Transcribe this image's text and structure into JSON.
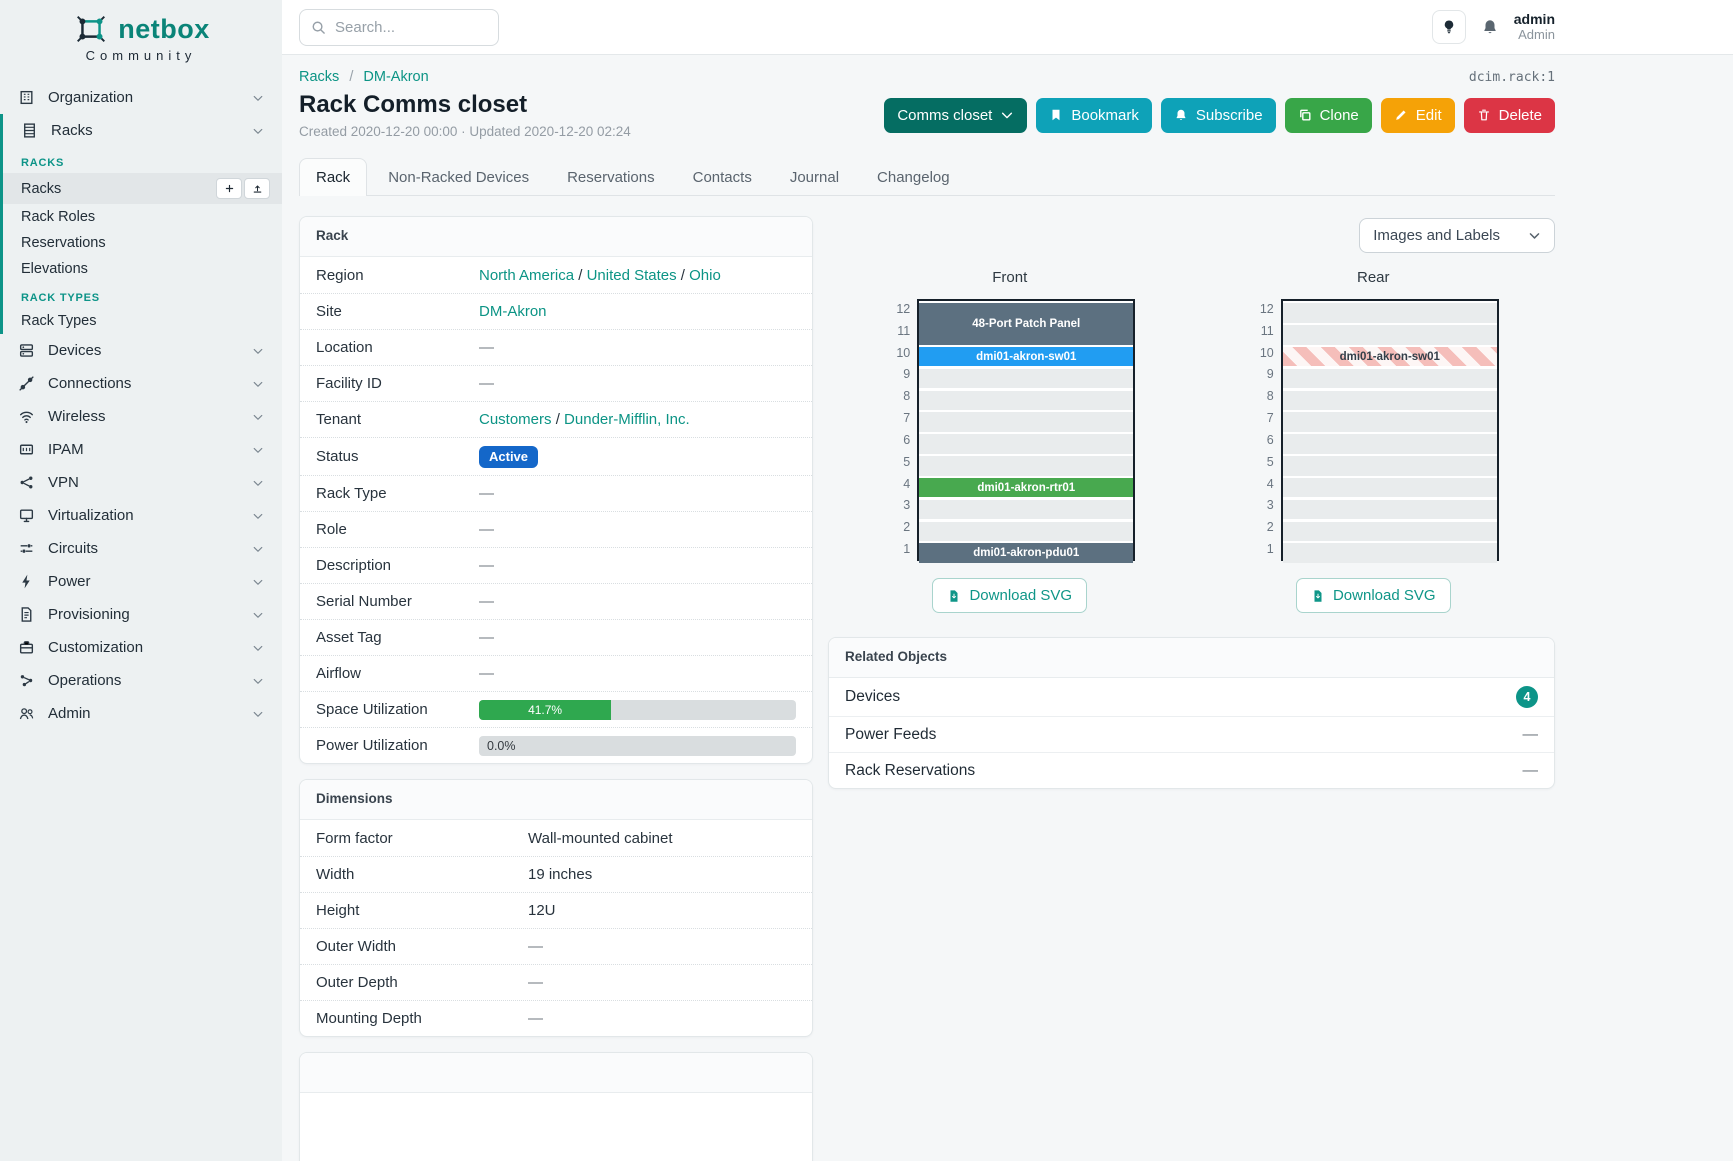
{
  "brand": {
    "name": "netbox",
    "community": "Community"
  },
  "topbar": {
    "search_placeholder": "Search...",
    "username": "admin",
    "role": "Admin"
  },
  "sidebar": {
    "items_before": [
      {
        "label": "Organization",
        "icon": "building"
      }
    ],
    "expanded": {
      "parent": {
        "label": "Racks",
        "icon": "rack"
      },
      "sections": [
        {
          "title": "RACKS",
          "items": [
            {
              "label": "Racks",
              "active": true
            },
            {
              "label": "Rack Roles"
            },
            {
              "label": "Reservations"
            },
            {
              "label": "Elevations"
            }
          ]
        },
        {
          "title": "RACK TYPES",
          "items": [
            {
              "label": "Rack Types"
            }
          ]
        }
      ]
    },
    "items_after": [
      {
        "label": "Devices",
        "icon": "devices"
      },
      {
        "label": "Connections",
        "icon": "connections"
      },
      {
        "label": "Wireless",
        "icon": "wireless"
      },
      {
        "label": "IPAM",
        "icon": "ipam"
      },
      {
        "label": "VPN",
        "icon": "vpn"
      },
      {
        "label": "Virtualization",
        "icon": "virtualization"
      },
      {
        "label": "Circuits",
        "icon": "circuits"
      },
      {
        "label": "Power",
        "icon": "power"
      },
      {
        "label": "Provisioning",
        "icon": "provisioning"
      },
      {
        "label": "Customization",
        "icon": "customization"
      },
      {
        "label": "Operations",
        "icon": "operations"
      },
      {
        "label": "Admin",
        "icon": "admin"
      }
    ]
  },
  "page": {
    "breadcrumb": [
      "Racks",
      "DM-Akron"
    ],
    "object_id": "dcim.rack:1",
    "title": "Rack Comms closet",
    "meta": "Created 2020-12-20 00:00 · Updated 2020-12-20 02:24",
    "tabs": [
      {
        "label": "Rack",
        "active": true
      },
      {
        "label": "Non-Racked Devices"
      },
      {
        "label": "Reservations"
      },
      {
        "label": "Contacts"
      },
      {
        "label": "Journal"
      },
      {
        "label": "Changelog"
      }
    ],
    "actions": [
      {
        "name": "status-dropdown",
        "label": "Comms closet",
        "color": "#056d62",
        "chevron": true
      },
      {
        "name": "bookmark-button",
        "label": "Bookmark",
        "icon": "bookmark",
        "color": "#0ea2b8"
      },
      {
        "name": "subscribe-button",
        "label": "Subscribe",
        "icon": "bell",
        "color": "#0ea2b8"
      },
      {
        "name": "clone-button",
        "label": "Clone",
        "icon": "copy",
        "color": "#38a648"
      },
      {
        "name": "edit-button",
        "label": "Edit",
        "icon": "pencil",
        "color": "#f5a207"
      },
      {
        "name": "delete-button",
        "label": "Delete",
        "icon": "trash",
        "color": "#dc3545"
      }
    ]
  },
  "rack_panel": {
    "title": "Rack",
    "label_width": 163,
    "rows": [
      {
        "label": "Region",
        "type": "links",
        "links": [
          "North America",
          "United States",
          "Ohio"
        ]
      },
      {
        "label": "Site",
        "type": "link",
        "value": "DM-Akron"
      },
      {
        "label": "Location",
        "type": "empty",
        "value": "—"
      },
      {
        "label": "Facility ID",
        "type": "empty",
        "value": "—"
      },
      {
        "label": "Tenant",
        "type": "links",
        "links": [
          "Customers",
          "Dunder-Mifflin, Inc."
        ]
      },
      {
        "label": "Status",
        "type": "badge",
        "value": "Active",
        "color": "#1467c9"
      },
      {
        "label": "Rack Type",
        "type": "empty",
        "value": "—"
      },
      {
        "label": "Role",
        "type": "empty",
        "value": "—"
      },
      {
        "label": "Description",
        "type": "empty",
        "value": "—"
      },
      {
        "label": "Serial Number",
        "type": "empty",
        "value": "—"
      },
      {
        "label": "Asset Tag",
        "type": "empty",
        "value": "—"
      },
      {
        "label": "Airflow",
        "type": "empty",
        "value": "—"
      },
      {
        "label": "Space Utilization",
        "type": "progress",
        "value": "41.7%",
        "percent": 41.7
      },
      {
        "label": "Power Utilization",
        "type": "progress",
        "value": "0.0%",
        "percent": 0
      }
    ]
  },
  "dimensions_panel": {
    "title": "Dimensions",
    "label_width": 212,
    "rows": [
      {
        "label": "Form factor",
        "type": "text",
        "value": "Wall-mounted cabinet"
      },
      {
        "label": "Width",
        "type": "text",
        "value": "19 inches"
      },
      {
        "label": "Height",
        "type": "text",
        "value": "12U"
      },
      {
        "label": "Outer Width",
        "type": "empty",
        "value": "—"
      },
      {
        "label": "Outer Depth",
        "type": "empty",
        "value": "—"
      },
      {
        "label": "Mounting Depth",
        "type": "empty",
        "value": "—"
      }
    ]
  },
  "elevations": {
    "view_mode": "Images and Labels",
    "download_label": "Download SVG",
    "unit_count": 12,
    "device_colors": {
      "slate": "#5c7080",
      "blue": "#219df2",
      "green": "#48a94f"
    },
    "views": [
      {
        "title": "Front",
        "devices": [
          {
            "name": "48-Port Patch Panel",
            "top_unit": 12,
            "height_u": 2,
            "style": "slate"
          },
          {
            "name": "dmi01-akron-sw01",
            "top_unit": 10,
            "height_u": 1,
            "style": "blue"
          },
          {
            "name": "dmi01-akron-rtr01",
            "top_unit": 4,
            "height_u": 1,
            "style": "green"
          },
          {
            "name": "dmi01-akron-pdu01",
            "top_unit": 1,
            "height_u": 1,
            "style": "slate"
          }
        ]
      },
      {
        "title": "Rear",
        "devices": [
          {
            "name": "dmi01-akron-sw01",
            "top_unit": 10,
            "height_u": 1,
            "style": "striped"
          }
        ]
      }
    ]
  },
  "related_objects": {
    "title": "Related Objects",
    "badge_color": "#0d9488",
    "rows": [
      {
        "label": "Devices",
        "badge": "4"
      },
      {
        "label": "Power Feeds",
        "value": "—"
      },
      {
        "label": "Rack Reservations",
        "value": "—"
      }
    ]
  }
}
